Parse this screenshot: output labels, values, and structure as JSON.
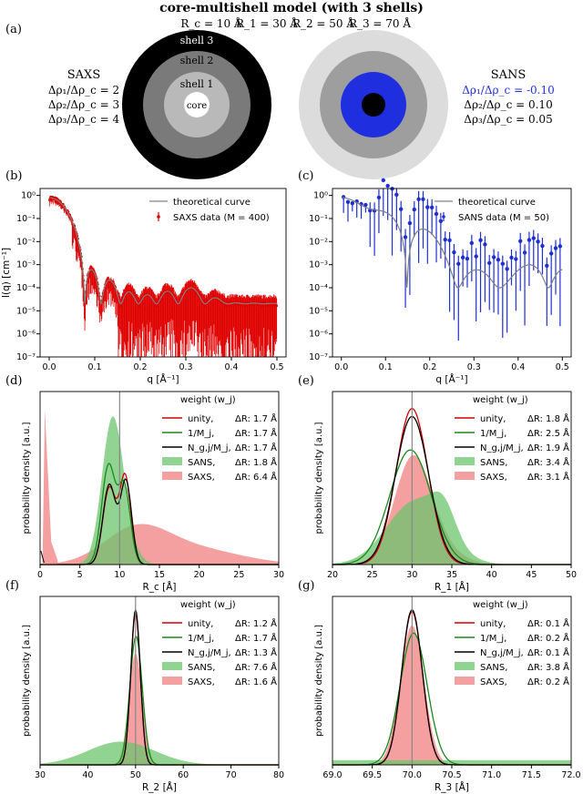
{
  "header": {
    "title": "core-multishell model (with 3 shells)",
    "params": [
      "R_c = 10 Å",
      "R_1 = 30 Å",
      "R_2 = 50 Å",
      "R_3 = 70 Å"
    ],
    "panel_a_label": "(a)"
  },
  "saxs_diagram": {
    "heading": "SAXS",
    "ratios": [
      "Δρ₁/Δρ_c = 2",
      "Δρ₂/Δρ_c = 3",
      "Δρ₃/Δρ_c = 4"
    ],
    "shell_labels": [
      "shell 3",
      "shell 2",
      "shell 1",
      "core"
    ],
    "colors": [
      "#000000",
      "#7a7a7a",
      "#b9b9b9",
      "#ffffff"
    ]
  },
  "sans_diagram": {
    "heading": "SANS",
    "ratios": [
      "Δρ₁/Δρ_c = -0.10",
      "Δρ₂/Δρ_c = 0.10",
      "Δρ₃/Δρ_c = 0.05"
    ],
    "ratio_colors": [
      "#1f2fe0",
      "#000000",
      "#000000"
    ],
    "colors": [
      "#dcdcdc",
      "#9e9e9e",
      "#1f2fe0",
      "#000000"
    ]
  },
  "chart_data": [
    {
      "id": "b",
      "panel_label": "(b)",
      "type": "scatter",
      "log_y": true,
      "xlabel": "q [Å⁻¹]",
      "ylabel": "I(q) [cm⁻¹]",
      "xlim": [
        -0.02,
        0.52
      ],
      "ylim": [
        1e-07,
        2
      ],
      "x_ticks": [
        "0.0",
        "0.1",
        "0.2",
        "0.3",
        "0.4",
        "0.5"
      ],
      "y_ticks": [
        "10⁻⁷",
        "10⁻⁶",
        "10⁻⁵",
        "10⁻⁴",
        "10⁻³",
        "10⁻²",
        "10⁻¹",
        "10⁰"
      ],
      "legend": [
        "theoretical curve",
        "SAXS data (M = 400)"
      ],
      "series_colors": [
        "#808080",
        "#e00000"
      ],
      "minima_q": [
        0.063,
        0.112,
        0.158,
        0.205
      ],
      "data_points": 400
    },
    {
      "id": "c",
      "panel_label": "(c)",
      "type": "scatter",
      "log_y": true,
      "xlabel": "q [Å⁻¹]",
      "xlim": [
        -0.02,
        0.52
      ],
      "ylim": [
        1e-07,
        2
      ],
      "x_ticks": [
        "0.0",
        "0.1",
        "0.2",
        "0.3",
        "0.4",
        "0.5"
      ],
      "y_ticks": [
        "10⁻⁷",
        "10⁻⁶",
        "10⁻⁵",
        "10⁻⁴",
        "10⁻³",
        "10⁻²",
        "10⁻¹",
        "10⁰"
      ],
      "legend": [
        "theoretical curve",
        "SANS data (M = 50)"
      ],
      "series_colors": [
        "#808080",
        "#1f2fd0"
      ],
      "minima_q": [
        0.063,
        0.125
      ],
      "data_points": 50
    },
    {
      "id": "d",
      "panel_label": "(d)",
      "type": "area",
      "xlabel": "R_c [Å]",
      "ylabel": "probability density [a.u.]",
      "xlim": [
        0,
        30
      ],
      "x_ticks": [
        "0",
        "5",
        "10",
        "15",
        "20",
        "25",
        "30"
      ],
      "true_value": 10,
      "legend_title": "weight (w_j)",
      "series": [
        {
          "name": "unity,",
          "dr": "ΔR: 1.7 Å",
          "color": "#d00000",
          "kind": "line",
          "peaks": [
            [
              8.7,
              0.48,
              0.8
            ],
            [
              10.7,
              0.55,
              0.7
            ]
          ]
        },
        {
          "name": "1/M_j,",
          "dr": "ΔR: 1.7 Å",
          "color": "#1a8a1a",
          "kind": "line",
          "peaks": [
            [
              8.6,
              0.62,
              0.85
            ],
            [
              10.6,
              0.48,
              0.75
            ]
          ]
        },
        {
          "name": "N_g,j/M_j,",
          "dr": "ΔR: 1.7 Å",
          "color": "#000000",
          "kind": "line",
          "peaks": [
            [
              8.7,
              0.5,
              0.8
            ],
            [
              10.8,
              0.52,
              0.7
            ]
          ]
        },
        {
          "name": "SANS,",
          "dr": "ΔR: 1.8 Å",
          "color": "#6cc46c",
          "kind": "fill",
          "peaks": [
            [
              9.0,
              0.78,
              1.3
            ],
            [
              10.2,
              0.2,
              1.5
            ]
          ]
        },
        {
          "name": "SAXS,",
          "dr": "ΔR: 6.4 Å",
          "color": "#f08080",
          "kind": "fill",
          "peaks": [
            [
              12,
              0.2,
              4.0
            ],
            [
              19,
              0.1,
              6
            ]
          ]
        }
      ]
    },
    {
      "id": "e",
      "panel_label": "(e)",
      "type": "area",
      "xlabel": "R_1 [Å]",
      "ylabel": "probability density [a.u.]",
      "xlim": [
        20,
        50
      ],
      "x_ticks": [
        "20",
        "25",
        "30",
        "35",
        "40",
        "45",
        "50"
      ],
      "true_value": 30,
      "legend_title": "weight (w_j)",
      "series": [
        {
          "name": "unity,",
          "dr": "ΔR: 1.8 Å",
          "color": "#d00000",
          "kind": "line",
          "peaks": [
            [
              30.0,
              0.98,
              2.0
            ]
          ]
        },
        {
          "name": "1/M_j,",
          "dr": "ΔR: 2.5 Å",
          "color": "#1a8a1a",
          "kind": "line",
          "peaks": [
            [
              29.8,
              0.72,
              2.6
            ]
          ]
        },
        {
          "name": "N_g,j/M_j,",
          "dr": "ΔR: 1.9 Å",
          "color": "#000000",
          "kind": "line",
          "peaks": [
            [
              30.0,
              0.93,
              2.1
            ]
          ]
        },
        {
          "name": "SANS,",
          "dr": "ΔR: 3.4 Å",
          "color": "#6cc46c",
          "kind": "fill",
          "peaks": [
            [
              30.5,
              0.4,
              3.6
            ],
            [
              34,
              0.18,
              1.5
            ]
          ]
        },
        {
          "name": "SAXS,",
          "dr": "ΔR: 3.1 Å",
          "color": "#f08080",
          "kind": "fill",
          "peaks": [
            [
              30.0,
              0.6,
              2.3
            ],
            [
              32.5,
              0.12,
              3
            ]
          ]
        }
      ]
    },
    {
      "id": "f",
      "panel_label": "(f)",
      "type": "area",
      "xlabel": "R_2 [Å]",
      "ylabel": "probability density [a.u.]",
      "xlim": [
        30,
        80
      ],
      "x_ticks": [
        "30",
        "40",
        "50",
        "60",
        "70",
        "80"
      ],
      "true_value": 50,
      "legend_title": "weight (w_j)",
      "series": [
        {
          "name": "unity,",
          "dr": "ΔR: 1.2 Å",
          "color": "#d00000",
          "kind": "line",
          "peaks": [
            [
              50.0,
              0.98,
              1.0
            ]
          ]
        },
        {
          "name": "1/M_j,",
          "dr": "ΔR: 1.7 Å",
          "color": "#1a8a1a",
          "kind": "line",
          "peaks": [
            [
              50.1,
              0.83,
              1.3
            ]
          ]
        },
        {
          "name": "N_g,j/M_j,",
          "dr": "ΔR: 1.3 Å",
          "color": "#000000",
          "kind": "line",
          "peaks": [
            [
              50.0,
              1.0,
              1.0
            ]
          ]
        },
        {
          "name": "SANS,",
          "dr": "ΔR: 7.6 Å",
          "color": "#6cc46c",
          "kind": "fill",
          "peaks": [
            [
              47,
              0.15,
              7
            ]
          ]
        },
        {
          "name": "SAXS,",
          "dr": "ΔR: 1.6 Å",
          "color": "#f08080",
          "kind": "fill",
          "peaks": [
            [
              50.0,
              0.72,
              1.4
            ]
          ]
        }
      ]
    },
    {
      "id": "g",
      "panel_label": "(g)",
      "type": "area",
      "xlabel": "R_3 [Å]",
      "ylabel": "probability density [a.u.]",
      "xlim": [
        69.0,
        72.0
      ],
      "x_ticks": [
        "69.0",
        "69.5",
        "70.0",
        "70.5",
        "71.0",
        "71.5",
        "72.0"
      ],
      "true_value": 70,
      "legend_title": "weight (w_j)",
      "series": [
        {
          "name": "unity,",
          "dr": "ΔR: 0.1 Å",
          "color": "#d00000",
          "kind": "line",
          "peaks": [
            [
              70.0,
              0.99,
              0.13
            ]
          ]
        },
        {
          "name": "1/M_j,",
          "dr": "ΔR: 0.2 Å",
          "color": "#1a8a1a",
          "kind": "line",
          "peaks": [
            [
              70.02,
              0.85,
              0.17
            ]
          ]
        },
        {
          "name": "N_g,j/M_j,",
          "dr": "ΔR: 0.1 Å",
          "color": "#000000",
          "kind": "line",
          "peaks": [
            [
              70.0,
              1.0,
              0.13
            ]
          ]
        },
        {
          "name": "SANS,",
          "dr": "ΔR: 3.8 Å",
          "color": "#6cc46c",
          "kind": "fill",
          "peaks": [
            [
              70.5,
              0.03,
              30
            ]
          ]
        },
        {
          "name": "SAXS,",
          "dr": "ΔR: 0.2 Å",
          "color": "#f08080",
          "kind": "fill",
          "peaks": [
            [
              70.0,
              0.9,
              0.15
            ]
          ]
        }
      ]
    }
  ]
}
